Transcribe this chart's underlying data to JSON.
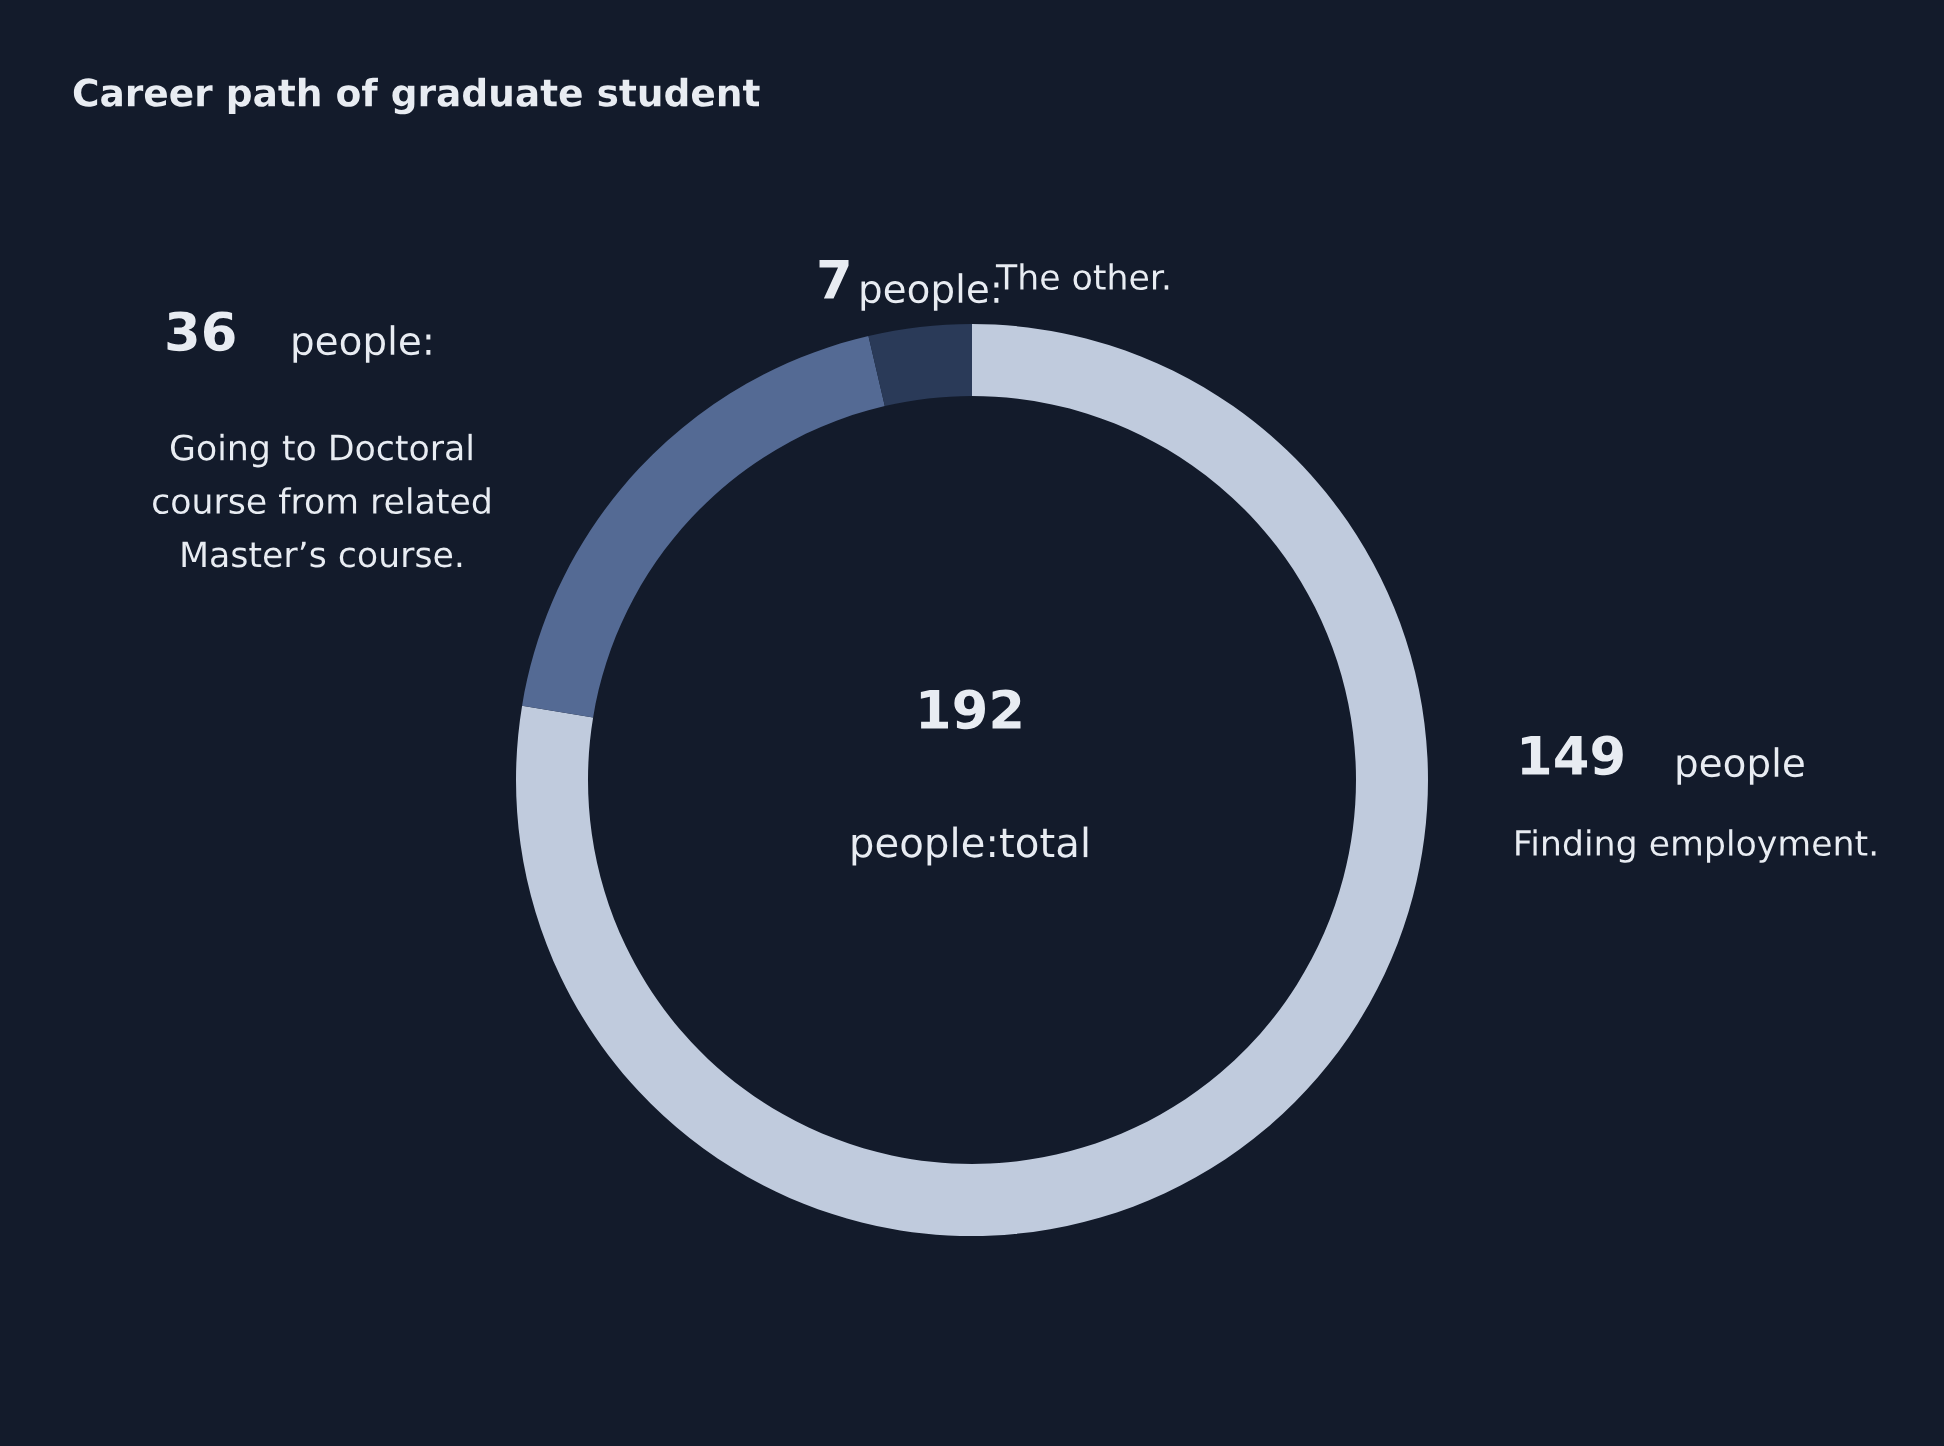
{
  "chart_data": {
    "type": "donut",
    "title": "Career path of graduate student",
    "categories": [
      "Finding employment.",
      "Going to Doctoral\ncourse from related\nMaster’s course.",
      "The other."
    ],
    "values": [
      149,
      36,
      7
    ],
    "value_labels": [
      "149",
      "36",
      "7"
    ],
    "colors": [
      "#c0cbdd",
      "#546a94",
      "#2a3a58"
    ],
    "annotations": [
      "people",
      "people:",
      "people:",
      "192",
      "people:total"
    ]
  }
}
